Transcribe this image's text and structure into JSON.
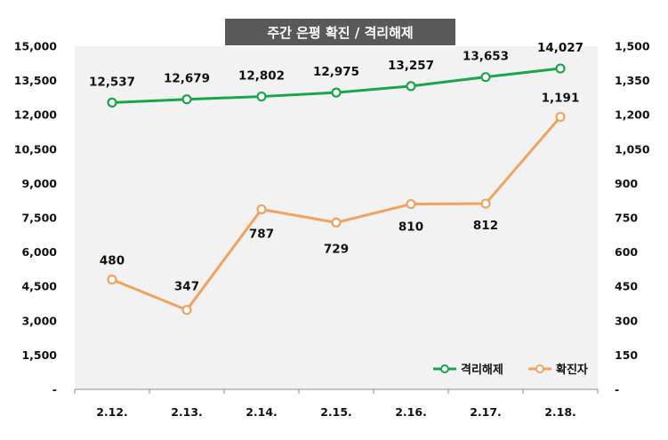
{
  "chart_data": {
    "type": "line",
    "title": "주간 은평 확진 / 격리해제",
    "categories": [
      "2.12.",
      "2.13.",
      "2.14.",
      "2.15.",
      "2.16.",
      "2.17.",
      "2.18."
    ],
    "series": [
      {
        "name": "격리해제",
        "axis": "left",
        "color": "#1aa54b",
        "values": [
          12537,
          12679,
          12802,
          12975,
          13257,
          13653,
          14027
        ],
        "labels": [
          "12,537",
          "12,679",
          "12,802",
          "12,975",
          "13,257",
          "13,653",
          "14,027"
        ]
      },
      {
        "name": "확진자",
        "axis": "right",
        "color": "#f0a35e",
        "values": [
          480,
          347,
          787,
          729,
          810,
          812,
          1191
        ],
        "labels": [
          "480",
          "347",
          "787",
          "729",
          "810",
          "812",
          "1,191"
        ]
      }
    ],
    "y_left": {
      "min": 0,
      "max": 15000,
      "ticks": [
        "-",
        "1,500",
        "3,000",
        "4,500",
        "6,000",
        "7,500",
        "9,000",
        "10,500",
        "12,000",
        "13,500",
        "15,000"
      ]
    },
    "y_right": {
      "min": 0,
      "max": 1500,
      "ticks": [
        "-",
        "150",
        "300",
        "450",
        "600",
        "750",
        "900",
        "1,050",
        "1,200",
        "1,350",
        "1,500"
      ]
    },
    "legend_position": "bottom-right"
  }
}
